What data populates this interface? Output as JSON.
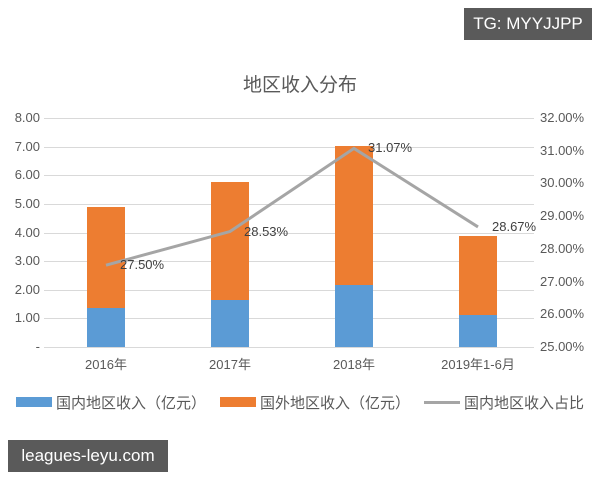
{
  "badges": {
    "top": "TG: MYYJJPP",
    "bottom": "leagues-leyu.com"
  },
  "chart_data": {
    "type": "bar",
    "title": "地区收入分布",
    "categories": [
      "2016年",
      "2017年",
      "2018年",
      "2019年1-6月"
    ],
    "series": [
      {
        "name": "国内地区收入（亿元）",
        "type": "stacked-bar",
        "axis": "left",
        "color": "#5b9bd5",
        "values": [
          1.35,
          1.65,
          2.18,
          1.11
        ]
      },
      {
        "name": "国外地区收入（亿元）",
        "type": "stacked-bar",
        "axis": "left",
        "color": "#ed7d31",
        "values": [
          3.55,
          4.13,
          4.84,
          2.77
        ]
      },
      {
        "name": "国内地区收入占比",
        "type": "line",
        "axis": "right",
        "color": "#a5a5a5",
        "values": [
          27.5,
          28.53,
          31.07,
          28.67
        ],
        "labels": [
          "27.50%",
          "28.53%",
          "31.07%",
          "28.67%"
        ]
      }
    ],
    "left_axis": {
      "ticks": [
        "-",
        "1.00",
        "2.00",
        "3.00",
        "4.00",
        "5.00",
        "6.00",
        "7.00",
        "8.00"
      ],
      "ylim": [
        0,
        8
      ]
    },
    "right_axis": {
      "ticks": [
        "25.00%",
        "26.00%",
        "27.00%",
        "28.00%",
        "29.00%",
        "30.00%",
        "31.00%",
        "32.00%"
      ],
      "ylim": [
        25,
        32
      ]
    },
    "xlabel": "",
    "ylabel": "",
    "grid": true,
    "legend_position": "bottom"
  }
}
